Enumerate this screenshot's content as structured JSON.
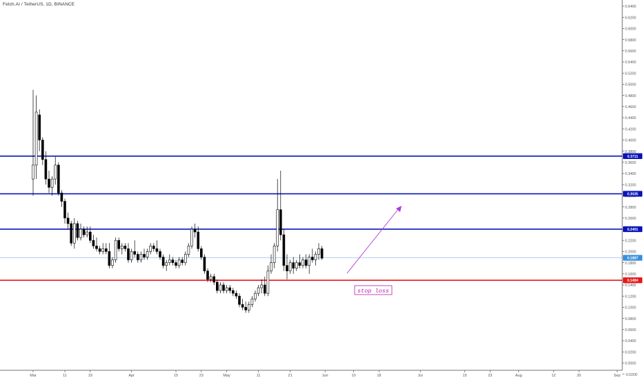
{
  "header": {
    "symbol_title": "Fetch.AI / TetherUS, 1D, BINANCE"
  },
  "annotation": {
    "stop_loss_text": "stop loss"
  },
  "colors": {
    "up_body": "#ffffff",
    "down_body": "#000000",
    "wick": "#000000",
    "resistance": "#0a14b8",
    "stop": "#e81818",
    "current": "#7fb8ea",
    "current_tag": "#3a8fdc",
    "arrow": "#b03ad8",
    "stop_text": "#b81db0",
    "axis_text": "#555555",
    "axis_line": "#444444"
  },
  "chart_data": {
    "type": "candlestick",
    "title": "Fetch.AI / TetherUS, 1D, BINANCE",
    "ylim": [
      -0.04,
      0.66
    ],
    "y_ticks": [
      "-0.0200",
      "0.0000",
      "0.0200",
      "0.0400",
      "0.0600",
      "0.0800",
      "0.1000",
      "0.1200",
      "0.1400",
      "0.1600",
      "0.1800",
      "0.2000",
      "0.2200",
      "0.2400",
      "0.2600",
      "0.2800",
      "0.3000",
      "0.3200",
      "0.3400",
      "0.3600",
      "0.3800",
      "0.4000",
      "0.4200",
      "0.4400",
      "0.4600",
      "0.4800",
      "0.5000",
      "0.5200",
      "0.5400",
      "0.5600",
      "0.5800",
      "0.6000",
      "0.6200",
      "0.6400"
    ],
    "x_ticks": [
      {
        "label": "Mar",
        "day": 0
      },
      {
        "label": "11",
        "day": 10
      },
      {
        "label": "19",
        "day": 18
      },
      {
        "label": "Apr",
        "day": 31
      },
      {
        "label": "15",
        "day": 45
      },
      {
        "label": "23",
        "day": 53
      },
      {
        "label": "May",
        "day": 61
      },
      {
        "label": "11",
        "day": 71
      },
      {
        "label": "21",
        "day": 81
      },
      {
        "label": "Jun",
        "day": 92
      },
      {
        "label": "10",
        "day": 101
      },
      {
        "label": "18",
        "day": 109
      },
      {
        "label": "Jul",
        "day": 122
      },
      {
        "label": "15",
        "day": 136
      },
      {
        "label": "23",
        "day": 144
      },
      {
        "label": "Aug",
        "day": 153
      },
      {
        "label": "12",
        "day": 164
      },
      {
        "label": "20",
        "day": 172
      },
      {
        "label": "Sep",
        "day": 184
      }
    ],
    "price_lines": [
      {
        "name": "resistance-1",
        "value": 0.3711,
        "label": "0.3711",
        "color": "#0a14b8"
      },
      {
        "name": "resistance-2",
        "value": 0.3035,
        "label": "0.3035",
        "color": "#0a14b8"
      },
      {
        "name": "resistance-3",
        "value": 0.2401,
        "label": "0.2401",
        "color": "#0a14b8"
      },
      {
        "name": "stop-loss",
        "value": 0.1484,
        "label": "0.1484",
        "color": "#e81818"
      },
      {
        "name": "current-price",
        "value": 0.1887,
        "label": "0.1887",
        "color": "#7fb8ea",
        "thin": true
      }
    ],
    "candles": [
      {
        "d": 0,
        "o": 0.33,
        "h": 0.49,
        "l": 0.3,
        "c": 0.355
      },
      {
        "d": 1,
        "o": 0.355,
        "h": 0.48,
        "l": 0.33,
        "c": 0.45
      },
      {
        "d": 2,
        "o": 0.445,
        "h": 0.455,
        "l": 0.38,
        "c": 0.4
      },
      {
        "d": 3,
        "o": 0.4,
        "h": 0.405,
        "l": 0.355,
        "c": 0.365
      },
      {
        "d": 4,
        "o": 0.365,
        "h": 0.38,
        "l": 0.32,
        "c": 0.33
      },
      {
        "d": 5,
        "o": 0.33,
        "h": 0.345,
        "l": 0.305,
        "c": 0.315
      },
      {
        "d": 6,
        "o": 0.315,
        "h": 0.335,
        "l": 0.3,
        "c": 0.33
      },
      {
        "d": 7,
        "o": 0.33,
        "h": 0.37,
        "l": 0.32,
        "c": 0.355
      },
      {
        "d": 8,
        "o": 0.355,
        "h": 0.36,
        "l": 0.3,
        "c": 0.305
      },
      {
        "d": 9,
        "o": 0.305,
        "h": 0.31,
        "l": 0.28,
        "c": 0.29
      },
      {
        "d": 10,
        "o": 0.29,
        "h": 0.295,
        "l": 0.25,
        "c": 0.26
      },
      {
        "d": 11,
        "o": 0.26,
        "h": 0.27,
        "l": 0.24,
        "c": 0.25
      },
      {
        "d": 12,
        "o": 0.25,
        "h": 0.255,
        "l": 0.21,
        "c": 0.215
      },
      {
        "d": 13,
        "o": 0.215,
        "h": 0.26,
        "l": 0.205,
        "c": 0.25
      },
      {
        "d": 14,
        "o": 0.25,
        "h": 0.255,
        "l": 0.22,
        "c": 0.225
      },
      {
        "d": 15,
        "o": 0.225,
        "h": 0.25,
        "l": 0.22,
        "c": 0.24
      },
      {
        "d": 16,
        "o": 0.24,
        "h": 0.245,
        "l": 0.225,
        "c": 0.23
      },
      {
        "d": 17,
        "o": 0.23,
        "h": 0.245,
        "l": 0.225,
        "c": 0.235
      },
      {
        "d": 18,
        "o": 0.235,
        "h": 0.245,
        "l": 0.215,
        "c": 0.22
      },
      {
        "d": 19,
        "o": 0.22,
        "h": 0.23,
        "l": 0.205,
        "c": 0.21
      },
      {
        "d": 20,
        "o": 0.21,
        "h": 0.225,
        "l": 0.2,
        "c": 0.205
      },
      {
        "d": 21,
        "o": 0.205,
        "h": 0.21,
        "l": 0.195,
        "c": 0.2
      },
      {
        "d": 22,
        "o": 0.2,
        "h": 0.215,
        "l": 0.195,
        "c": 0.205
      },
      {
        "d": 23,
        "o": 0.205,
        "h": 0.215,
        "l": 0.195,
        "c": 0.2
      },
      {
        "d": 24,
        "o": 0.2,
        "h": 0.215,
        "l": 0.17,
        "c": 0.175
      },
      {
        "d": 25,
        "o": 0.175,
        "h": 0.19,
        "l": 0.17,
        "c": 0.185
      },
      {
        "d": 26,
        "o": 0.185,
        "h": 0.225,
        "l": 0.18,
        "c": 0.22
      },
      {
        "d": 27,
        "o": 0.22,
        "h": 0.225,
        "l": 0.2,
        "c": 0.205
      },
      {
        "d": 28,
        "o": 0.205,
        "h": 0.215,
        "l": 0.195,
        "c": 0.21
      },
      {
        "d": 29,
        "o": 0.21,
        "h": 0.215,
        "l": 0.2,
        "c": 0.205
      },
      {
        "d": 30,
        "o": 0.205,
        "h": 0.215,
        "l": 0.18,
        "c": 0.185
      },
      {
        "d": 31,
        "o": 0.185,
        "h": 0.205,
        "l": 0.18,
        "c": 0.2
      },
      {
        "d": 32,
        "o": 0.2,
        "h": 0.22,
        "l": 0.19,
        "c": 0.195
      },
      {
        "d": 33,
        "o": 0.195,
        "h": 0.2,
        "l": 0.18,
        "c": 0.185
      },
      {
        "d": 34,
        "o": 0.185,
        "h": 0.2,
        "l": 0.18,
        "c": 0.195
      },
      {
        "d": 35,
        "o": 0.195,
        "h": 0.205,
        "l": 0.185,
        "c": 0.19
      },
      {
        "d": 36,
        "o": 0.19,
        "h": 0.205,
        "l": 0.185,
        "c": 0.2
      },
      {
        "d": 37,
        "o": 0.2,
        "h": 0.215,
        "l": 0.195,
        "c": 0.21
      },
      {
        "d": 38,
        "o": 0.21,
        "h": 0.215,
        "l": 0.2,
        "c": 0.205
      },
      {
        "d": 39,
        "o": 0.205,
        "h": 0.22,
        "l": 0.195,
        "c": 0.2
      },
      {
        "d": 40,
        "o": 0.2,
        "h": 0.205,
        "l": 0.185,
        "c": 0.19
      },
      {
        "d": 41,
        "o": 0.19,
        "h": 0.195,
        "l": 0.17,
        "c": 0.175
      },
      {
        "d": 42,
        "o": 0.175,
        "h": 0.185,
        "l": 0.165,
        "c": 0.18
      },
      {
        "d": 43,
        "o": 0.18,
        "h": 0.195,
        "l": 0.175,
        "c": 0.185
      },
      {
        "d": 44,
        "o": 0.185,
        "h": 0.19,
        "l": 0.175,
        "c": 0.18
      },
      {
        "d": 45,
        "o": 0.18,
        "h": 0.185,
        "l": 0.17,
        "c": 0.175
      },
      {
        "d": 46,
        "o": 0.175,
        "h": 0.19,
        "l": 0.17,
        "c": 0.185
      },
      {
        "d": 47,
        "o": 0.185,
        "h": 0.19,
        "l": 0.175,
        "c": 0.18
      },
      {
        "d": 48,
        "o": 0.18,
        "h": 0.2,
        "l": 0.175,
        "c": 0.195
      },
      {
        "d": 49,
        "o": 0.195,
        "h": 0.215,
        "l": 0.19,
        "c": 0.21
      },
      {
        "d": 50,
        "o": 0.21,
        "h": 0.245,
        "l": 0.205,
        "c": 0.24
      },
      {
        "d": 51,
        "o": 0.24,
        "h": 0.25,
        "l": 0.225,
        "c": 0.235
      },
      {
        "d": 52,
        "o": 0.235,
        "h": 0.245,
        "l": 0.2,
        "c": 0.205
      },
      {
        "d": 53,
        "o": 0.205,
        "h": 0.21,
        "l": 0.185,
        "c": 0.19
      },
      {
        "d": 54,
        "o": 0.19,
        "h": 0.195,
        "l": 0.16,
        "c": 0.165
      },
      {
        "d": 55,
        "o": 0.165,
        "h": 0.17,
        "l": 0.145,
        "c": 0.15
      },
      {
        "d": 56,
        "o": 0.15,
        "h": 0.16,
        "l": 0.145,
        "c": 0.155
      },
      {
        "d": 57,
        "o": 0.155,
        "h": 0.16,
        "l": 0.14,
        "c": 0.145
      },
      {
        "d": 58,
        "o": 0.145,
        "h": 0.15,
        "l": 0.125,
        "c": 0.13
      },
      {
        "d": 59,
        "o": 0.13,
        "h": 0.145,
        "l": 0.125,
        "c": 0.14
      },
      {
        "d": 60,
        "o": 0.14,
        "h": 0.145,
        "l": 0.125,
        "c": 0.13
      },
      {
        "d": 61,
        "o": 0.13,
        "h": 0.14,
        "l": 0.125,
        "c": 0.135
      },
      {
        "d": 62,
        "o": 0.135,
        "h": 0.14,
        "l": 0.125,
        "c": 0.13
      },
      {
        "d": 63,
        "o": 0.13,
        "h": 0.135,
        "l": 0.12,
        "c": 0.125
      },
      {
        "d": 64,
        "o": 0.125,
        "h": 0.13,
        "l": 0.115,
        "c": 0.12
      },
      {
        "d": 65,
        "o": 0.12,
        "h": 0.125,
        "l": 0.1,
        "c": 0.105
      },
      {
        "d": 66,
        "o": 0.105,
        "h": 0.115,
        "l": 0.095,
        "c": 0.1
      },
      {
        "d": 67,
        "o": 0.1,
        "h": 0.11,
        "l": 0.09,
        "c": 0.095
      },
      {
        "d": 68,
        "o": 0.095,
        "h": 0.11,
        "l": 0.09,
        "c": 0.105
      },
      {
        "d": 69,
        "o": 0.105,
        "h": 0.12,
        "l": 0.1,
        "c": 0.115
      },
      {
        "d": 70,
        "o": 0.115,
        "h": 0.13,
        "l": 0.11,
        "c": 0.125
      },
      {
        "d": 71,
        "o": 0.125,
        "h": 0.14,
        "l": 0.12,
        "c": 0.135
      },
      {
        "d": 72,
        "o": 0.135,
        "h": 0.15,
        "l": 0.125,
        "c": 0.14
      },
      {
        "d": 73,
        "o": 0.14,
        "h": 0.155,
        "l": 0.12,
        "c": 0.125
      },
      {
        "d": 74,
        "o": 0.125,
        "h": 0.175,
        "l": 0.12,
        "c": 0.165
      },
      {
        "d": 75,
        "o": 0.165,
        "h": 0.195,
        "l": 0.16,
        "c": 0.18
      },
      {
        "d": 76,
        "o": 0.18,
        "h": 0.215,
        "l": 0.17,
        "c": 0.21
      },
      {
        "d": 77,
        "o": 0.21,
        "h": 0.33,
        "l": 0.2,
        "c": 0.275
      },
      {
        "d": 78,
        "o": 0.275,
        "h": 0.345,
        "l": 0.22,
        "c": 0.23
      },
      {
        "d": 79,
        "o": 0.23,
        "h": 0.24,
        "l": 0.165,
        "c": 0.175
      },
      {
        "d": 80,
        "o": 0.175,
        "h": 0.195,
        "l": 0.15,
        "c": 0.165
      },
      {
        "d": 81,
        "o": 0.165,
        "h": 0.185,
        "l": 0.16,
        "c": 0.18
      },
      {
        "d": 82,
        "o": 0.18,
        "h": 0.19,
        "l": 0.16,
        "c": 0.17
      },
      {
        "d": 83,
        "o": 0.17,
        "h": 0.185,
        "l": 0.165,
        "c": 0.18
      },
      {
        "d": 84,
        "o": 0.18,
        "h": 0.195,
        "l": 0.17,
        "c": 0.175
      },
      {
        "d": 85,
        "o": 0.175,
        "h": 0.19,
        "l": 0.17,
        "c": 0.185
      },
      {
        "d": 86,
        "o": 0.185,
        "h": 0.195,
        "l": 0.17,
        "c": 0.175
      },
      {
        "d": 87,
        "o": 0.175,
        "h": 0.195,
        "l": 0.16,
        "c": 0.19
      },
      {
        "d": 88,
        "o": 0.19,
        "h": 0.205,
        "l": 0.18,
        "c": 0.185
      },
      {
        "d": 89,
        "o": 0.185,
        "h": 0.2,
        "l": 0.175,
        "c": 0.195
      },
      {
        "d": 90,
        "o": 0.195,
        "h": 0.215,
        "l": 0.185,
        "c": 0.205
      },
      {
        "d": 91,
        "o": 0.205,
        "h": 0.21,
        "l": 0.185,
        "c": 0.188
      }
    ]
  }
}
